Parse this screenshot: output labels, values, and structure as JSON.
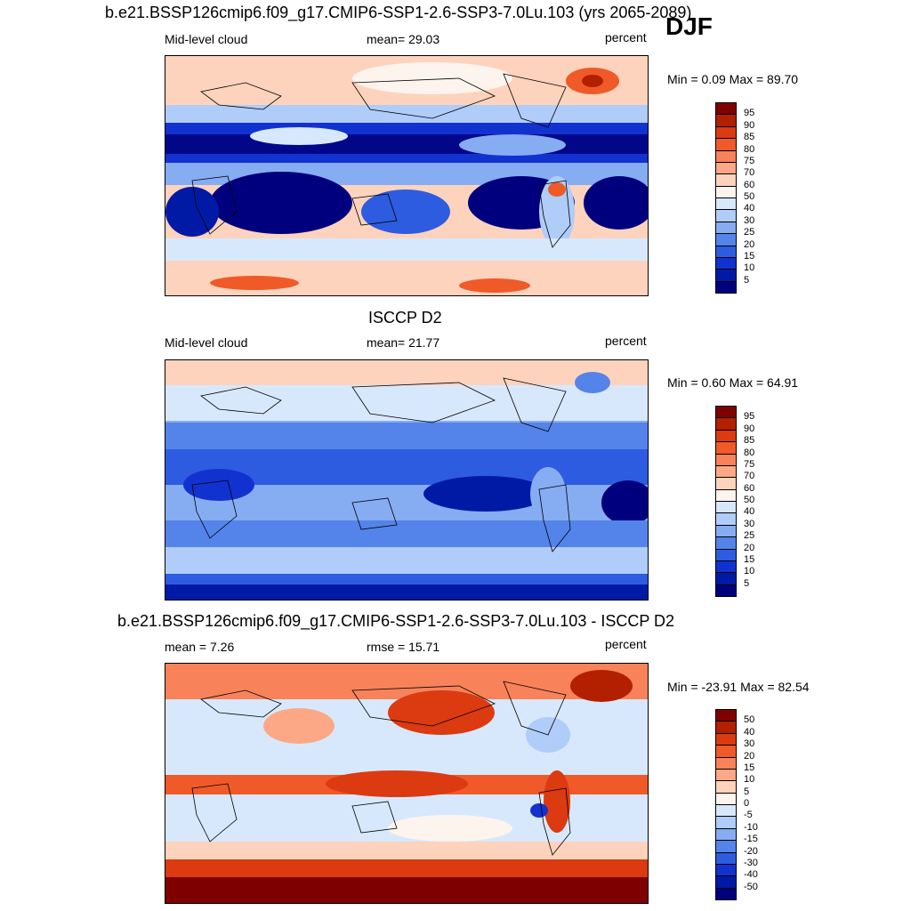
{
  "season": "DJF",
  "panels": [
    {
      "title": "b.e21.BSSP126cmip6.f09_g17.CMIP6-SSP1-2.6-SSP3-7.0Lu.103 (yrs 2065-2089)",
      "left_label": "Mid-level cloud",
      "center_label": "mean=  29.03",
      "right_label": "percent",
      "minmax": "Min =   0.09 Max =  89.70",
      "kind": "model",
      "colorbar_labels": [
        "95",
        "90",
        "85",
        "80",
        "75",
        "70",
        "60",
        "50",
        "40",
        "30",
        "25",
        "20",
        "15",
        "10",
        "5"
      ]
    },
    {
      "title": "ISCCP D2",
      "left_label": "Mid-level cloud",
      "center_label": "mean=  21.77",
      "right_label": "percent",
      "minmax": "Min =   0.60 Max =  64.91",
      "kind": "obs",
      "colorbar_labels": [
        "95",
        "90",
        "85",
        "80",
        "75",
        "70",
        "60",
        "50",
        "40",
        "30",
        "25",
        "20",
        "15",
        "10",
        "5"
      ]
    },
    {
      "title": "b.e21.BSSP126cmip6.f09_g17.CMIP6-SSP1-2.6-SSP3-7.0Lu.103 - ISCCP D2",
      "left_label": "mean =   7.26",
      "center_label": "rmse =  15.71",
      "right_label": "percent",
      "minmax": "Min = -23.91 Max =  82.54",
      "kind": "diff",
      "colorbar_labels": [
        "50",
        "40",
        "30",
        "20",
        "15",
        "10",
        "5",
        "0",
        "-5",
        "-10",
        "-15",
        "-20",
        "-30",
        "-40",
        "-50"
      ]
    }
  ],
  "colorbar_colors": [
    "#7f0000",
    "#b22000",
    "#dc3a10",
    "#f05a28",
    "#f8825a",
    "#fca886",
    "#fdd3bd",
    "#fef4ee",
    "#d8e8fc",
    "#b0ccf8",
    "#86acf2",
    "#5484ea",
    "#2e5ce0",
    "#1232d0",
    "#001aa6",
    "#00007e"
  ]
}
